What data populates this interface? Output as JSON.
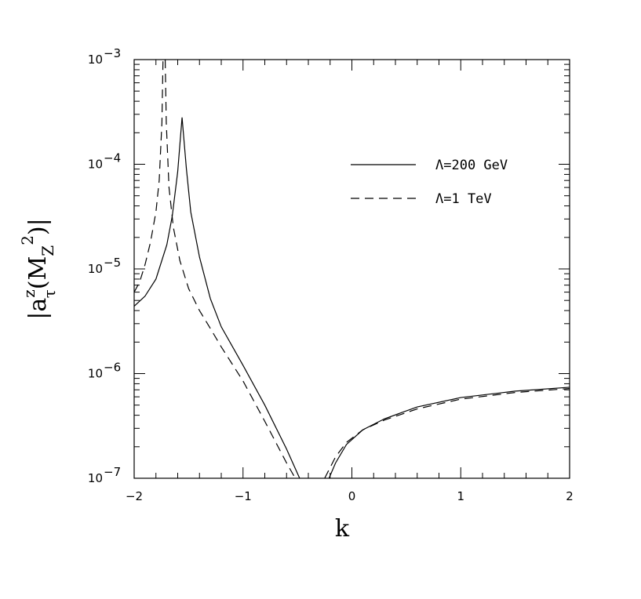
{
  "chart_data": {
    "type": "line",
    "xlabel": "k",
    "ylabel": {
      "bar_open": "|a",
      "sup_z": "z",
      "sub_tau": "τ",
      "paren_open": "(M",
      "sub_Z": "Z",
      "sup_2": "2",
      "paren_close": ")|"
    },
    "x_scale": "linear",
    "y_scale": "log",
    "xlim": [
      -2,
      2
    ],
    "ylim": [
      1e-07,
      0.001
    ],
    "x_ticks": [
      {
        "value": -2,
        "label": "−2"
      },
      {
        "value": -1,
        "label": "−1"
      },
      {
        "value": 0,
        "label": "0"
      },
      {
        "value": 1,
        "label": "1"
      },
      {
        "value": 2,
        "label": "2"
      }
    ],
    "y_ticks": [
      {
        "value": 1e-07,
        "base": "10",
        "exp": "−7"
      },
      {
        "value": 1e-06,
        "base": "10",
        "exp": "−6"
      },
      {
        "value": 1e-05,
        "base": "10",
        "exp": "−5"
      },
      {
        "value": 0.0001,
        "base": "10",
        "exp": "−4"
      },
      {
        "value": 0.001,
        "base": "10",
        "exp": "−3"
      }
    ],
    "grid": false,
    "legend_position": "top-right",
    "series": [
      {
        "name": "Λ=200 GeV",
        "style": "solid",
        "color": "#000000",
        "points": [
          [
            -2.0,
            4.4e-06
          ],
          [
            -1.9,
            5.5e-06
          ],
          [
            -1.8,
            8e-06
          ],
          [
            -1.7,
            1.7e-05
          ],
          [
            -1.65,
            3.2e-05
          ],
          [
            -1.6,
            8.5e-05
          ],
          [
            -1.56,
            0.00028
          ],
          [
            -1.52,
            9e-05
          ],
          [
            -1.48,
            3.5e-05
          ],
          [
            -1.4,
            1.3e-05
          ],
          [
            -1.3,
            5.2e-06
          ],
          [
            -1.2,
            2.8e-06
          ],
          [
            -1.0,
            1.2e-06
          ],
          [
            -0.8,
            5e-07
          ],
          [
            -0.6,
            1.9e-07
          ],
          [
            -0.48,
            1e-07
          ]
        ]
      },
      {
        "name": "Λ=200 GeV",
        "style": "solid",
        "color": "#000000",
        "points": [
          [
            -0.21,
            1e-07
          ],
          [
            -0.15,
            1.4e-07
          ],
          [
            -0.05,
            2.1e-07
          ],
          [
            0.1,
            2.9e-07
          ],
          [
            0.3,
            3.7e-07
          ],
          [
            0.6,
            4.8e-07
          ],
          [
            1.0,
            5.9e-07
          ],
          [
            1.5,
            6.8e-07
          ],
          [
            2.0,
            7.4e-07
          ]
        ]
      },
      {
        "name": "Λ=1 TeV",
        "style": "dashed",
        "color": "#000000",
        "points": [
          [
            -2.0,
            6e-06
          ],
          [
            -1.95,
            7.5e-06
          ],
          [
            -1.9,
            1.1e-05
          ],
          [
            -1.85,
            1.8e-05
          ],
          [
            -1.8,
            3.5e-05
          ],
          [
            -1.77,
            7e-05
          ],
          [
            -1.745,
            0.00025
          ],
          [
            -1.735,
            0.001
          ]
        ]
      },
      {
        "name": "Λ=1 TeV",
        "style": "dashed",
        "color": "#000000",
        "points": [
          [
            -1.715,
            0.001
          ],
          [
            -1.705,
            0.00025
          ],
          [
            -1.68,
            6e-05
          ],
          [
            -1.64,
            2.5e-05
          ],
          [
            -1.58,
            1.2e-05
          ],
          [
            -1.5,
            6.5e-06
          ],
          [
            -1.4,
            4e-06
          ],
          [
            -1.3,
            2.7e-06
          ],
          [
            -1.2,
            1.8e-06
          ],
          [
            -1.0,
            8.5e-07
          ],
          [
            -0.8,
            3.5e-07
          ],
          [
            -0.6,
            1.4e-07
          ],
          [
            -0.52,
            1e-07
          ]
        ]
      },
      {
        "name": "Λ=1 TeV",
        "style": "dashed",
        "color": "#000000",
        "points": [
          [
            -0.25,
            1e-07
          ],
          [
            -0.15,
            1.6e-07
          ],
          [
            -0.05,
            2.2e-07
          ],
          [
            0.1,
            2.9e-07
          ],
          [
            0.3,
            3.6e-07
          ],
          [
            0.6,
            4.6e-07
          ],
          [
            1.0,
            5.7e-07
          ],
          [
            1.5,
            6.6e-07
          ],
          [
            2.0,
            7.2e-07
          ]
        ]
      }
    ],
    "legend": [
      {
        "label": "Λ=200 GeV",
        "style": "solid"
      },
      {
        "label": "Λ=1 TeV",
        "style": "dashed"
      }
    ]
  }
}
